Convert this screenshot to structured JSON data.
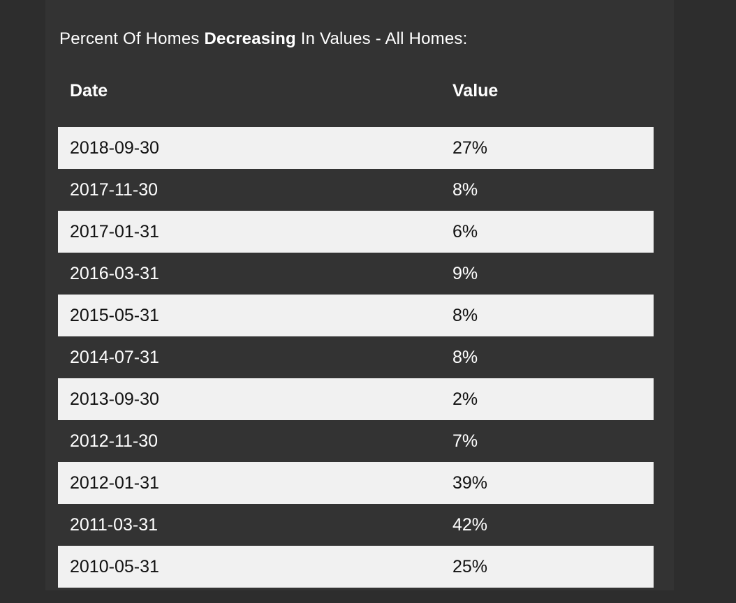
{
  "title": {
    "prefix": "Percent Of Homes ",
    "bold_word": "Decreasing",
    "suffix": " In Values - All Homes:"
  },
  "table": {
    "columns": [
      "Date",
      "Value"
    ],
    "rows": [
      {
        "date": "2018-09-30",
        "value": "27%"
      },
      {
        "date": "2017-11-30",
        "value": "8%"
      },
      {
        "date": "2017-01-31",
        "value": "6%"
      },
      {
        "date": "2016-03-31",
        "value": "9%"
      },
      {
        "date": "2015-05-31",
        "value": "8%"
      },
      {
        "date": "2014-07-31",
        "value": "8%"
      },
      {
        "date": "2013-09-30",
        "value": "2%"
      },
      {
        "date": "2012-11-30",
        "value": "7%"
      },
      {
        "date": "2012-01-31",
        "value": "39%"
      },
      {
        "date": "2011-03-31",
        "value": "42%"
      },
      {
        "date": "2010-05-31",
        "value": "25%"
      }
    ]
  },
  "chart_data": {
    "type": "table",
    "title": "Percent Of Homes Decreasing In Values - All Homes:",
    "columns": [
      "Date",
      "Value"
    ],
    "dates": [
      "2018-09-30",
      "2017-11-30",
      "2017-01-31",
      "2016-03-31",
      "2015-05-31",
      "2014-07-31",
      "2013-09-30",
      "2012-11-30",
      "2012-01-31",
      "2011-03-31",
      "2010-05-31"
    ],
    "values_percent": [
      27,
      8,
      6,
      9,
      8,
      8,
      2,
      7,
      39,
      42,
      25
    ],
    "layout": "alternating row stripes, first row light"
  },
  "colors": {
    "page_bg": "#2d2d2d",
    "panel_bg": "#333333",
    "stripe_bg": "#f1f1f1",
    "stripe_text": "#111111",
    "text": "#ffffff"
  }
}
